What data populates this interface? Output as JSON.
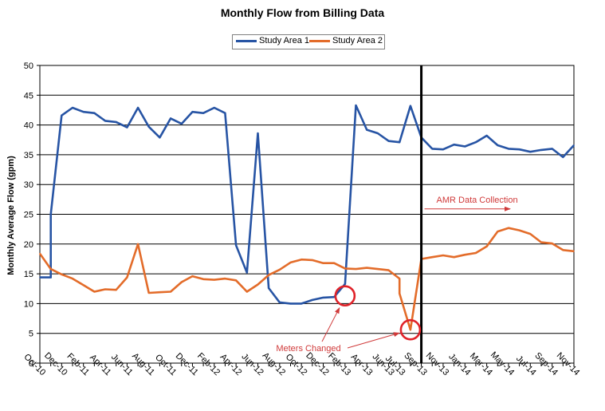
{
  "chart_data": {
    "type": "line",
    "title": "Monthly Flow from Billing Data",
    "xlabel": "",
    "ylabel": "Monthly Average Flow (gpm)",
    "ylim": [
      0,
      50
    ],
    "yticks": [
      0,
      5,
      10,
      15,
      20,
      25,
      30,
      35,
      40,
      45,
      50
    ],
    "grid": "horizontal",
    "legend_position": "top-center",
    "x_tick_labels": [
      "Oct-10",
      "Dec-10",
      "Feb-11",
      "Apr-11",
      "Jun-11",
      "Aug-11",
      "Oct-11",
      "Dec-11",
      "Feb-12",
      "Apr-12",
      "Jun-12",
      "Aug-12",
      "Oct-12",
      "Dec-12",
      "Feb-13",
      "Apr-13",
      "Jun-13",
      "Jul-13",
      "Sep-13",
      "Nov-13",
      "Jan-14",
      "Mar-14",
      "May-14",
      "Jul-14",
      "Sep-14",
      "Nov-14"
    ],
    "categories": [
      "Oct-10",
      "Nov-10",
      "Dec-10",
      "Jan-11",
      "Feb-11",
      "Mar-11",
      "Apr-11",
      "May-11",
      "Jun-11",
      "Jul-11",
      "Aug-11",
      "Sep-11",
      "Oct-11",
      "Nov-11",
      "Dec-11",
      "Jan-12",
      "Feb-12",
      "Mar-12",
      "Apr-12",
      "May-12",
      "Jun-12",
      "Jul-12",
      "Aug-12",
      "Sep-12",
      "Oct-12",
      "Nov-12",
      "Dec-12",
      "Jan-13",
      "Feb-13",
      "Mar-13",
      "Apr-13",
      "May-13",
      "Jun-13",
      "Jul-13",
      "Aug-13",
      "Sep-13",
      "Oct-13",
      "Nov-13",
      "Dec-13",
      "Jan-14",
      "Feb-14",
      "Mar-14",
      "Apr-14",
      "May-14",
      "Jun-14",
      "Jul-14",
      "Aug-14",
      "Sep-14",
      "Oct-14",
      "Nov-14"
    ],
    "series": [
      {
        "name": "Study Area 1",
        "color": "#2754a4",
        "points": [
          [
            "Oct-10",
            14.4
          ],
          [
            "Nov-10",
            14.4
          ],
          [
            "Nov-10",
            25.0
          ],
          [
            "Dec-10",
            41.6
          ],
          [
            "Jan-11",
            42.9
          ],
          [
            "Feb-11",
            42.2
          ],
          [
            "Mar-11",
            42.0
          ],
          [
            "Apr-11",
            40.7
          ],
          [
            "May-11",
            40.5
          ],
          [
            "Jun-11",
            39.6
          ],
          [
            "Jul-11",
            42.9
          ],
          [
            "Aug-11",
            39.7
          ],
          [
            "Sep-11",
            37.9
          ],
          [
            "Oct-11",
            41.1
          ],
          [
            "Nov-11",
            40.2
          ],
          [
            "Dec-11",
            42.2
          ],
          [
            "Jan-12",
            42.0
          ],
          [
            "Feb-12",
            42.9
          ],
          [
            "Mar-12",
            42.0
          ],
          [
            "Apr-12",
            19.8
          ],
          [
            "May-12",
            15.2
          ],
          [
            "Jun-12",
            38.6
          ],
          [
            "Jul-12",
            12.6
          ],
          [
            "Aug-12",
            10.2
          ],
          [
            "Sep-12",
            10.0
          ],
          [
            "Oct-12",
            10.0
          ],
          [
            "Nov-12",
            10.6
          ],
          [
            "Dec-12",
            11.0
          ],
          [
            "Jan-13",
            11.1
          ],
          [
            "Feb-13",
            13.3
          ],
          [
            "Mar-13",
            43.3
          ],
          [
            "Apr-13",
            39.2
          ],
          [
            "May-13",
            38.6
          ],
          [
            "Jun-13",
            37.3
          ],
          [
            "Jul-13",
            37.1
          ],
          [
            "Aug-13",
            43.2
          ],
          [
            "Sep-13",
            37.9
          ],
          [
            "Oct-13",
            36.0
          ],
          [
            "Nov-13",
            35.9
          ],
          [
            "Dec-13",
            36.7
          ],
          [
            "Jan-14",
            36.4
          ],
          [
            "Feb-14",
            37.1
          ],
          [
            "Mar-14",
            38.2
          ],
          [
            "Apr-14",
            36.6
          ],
          [
            "May-14",
            36.0
          ],
          [
            "Jun-14",
            35.9
          ],
          [
            "Jul-14",
            35.5
          ],
          [
            "Aug-14",
            35.8
          ],
          [
            "Sep-14",
            36.0
          ],
          [
            "Oct-14",
            34.6
          ],
          [
            "Nov-14",
            36.6
          ]
        ]
      },
      {
        "name": "Study Area 2",
        "color": "#e36c2a",
        "points": [
          [
            "Oct-10",
            18.4
          ],
          [
            "Nov-10",
            15.8
          ],
          [
            "Dec-10",
            14.9
          ],
          [
            "Jan-11",
            14.2
          ],
          [
            "Feb-11",
            13.1
          ],
          [
            "Mar-11",
            12.0
          ],
          [
            "Apr-11",
            12.4
          ],
          [
            "May-11",
            12.3
          ],
          [
            "Jun-11",
            14.4
          ],
          [
            "Jul-11",
            20.0
          ],
          [
            "Aug-11",
            11.8
          ],
          [
            "Sep-11",
            11.9
          ],
          [
            "Oct-11",
            12.0
          ],
          [
            "Nov-11",
            13.6
          ],
          [
            "Dec-11",
            14.6
          ],
          [
            "Jan-12",
            14.1
          ],
          [
            "Feb-12",
            14.0
          ],
          [
            "Mar-12",
            14.2
          ],
          [
            "Apr-12",
            13.9
          ],
          [
            "May-12",
            12.0
          ],
          [
            "Jun-12",
            13.2
          ],
          [
            "Jul-12",
            14.8
          ],
          [
            "Aug-12",
            15.7
          ],
          [
            "Sep-12",
            16.9
          ],
          [
            "Oct-12",
            17.4
          ],
          [
            "Nov-12",
            17.3
          ],
          [
            "Dec-12",
            16.8
          ],
          [
            "Jan-13",
            16.8
          ],
          [
            "Feb-13",
            15.9
          ],
          [
            "Mar-13",
            15.8
          ],
          [
            "Apr-13",
            16.0
          ],
          [
            "May-13",
            15.8
          ],
          [
            "Jun-13",
            15.6
          ],
          [
            "Jul-13",
            14.2
          ],
          [
            "Jul-13",
            11.7
          ],
          [
            "Aug-13",
            5.6
          ],
          [
            "Sep-13",
            17.5
          ],
          [
            "Oct-13",
            17.8
          ],
          [
            "Nov-13",
            18.1
          ],
          [
            "Dec-13",
            17.8
          ],
          [
            "Jan-14",
            18.2
          ],
          [
            "Feb-14",
            18.5
          ],
          [
            "Mar-14",
            19.6
          ],
          [
            "Apr-14",
            22.1
          ],
          [
            "May-14",
            22.7
          ],
          [
            "Jun-14",
            22.3
          ],
          [
            "Jul-14",
            21.7
          ],
          [
            "Aug-14",
            20.3
          ],
          [
            "Sep-14",
            20.1
          ],
          [
            "Oct-14",
            19.0
          ],
          [
            "Nov-14",
            18.8
          ]
        ]
      }
    ],
    "vertical_marker": {
      "x": "Sep-13",
      "color": "#000000"
    },
    "annotations": {
      "amr_label": "AMR Data Collection",
      "meters_label": "Meters Changed",
      "annotation_color": "#d03a3a",
      "amr_arrow": {
        "from": "Sep-13",
        "to": "May-14",
        "y": 25.9
      },
      "circles": [
        {
          "x": "Feb-13",
          "y": 11.3
        },
        {
          "x": "Aug-13",
          "y": 5.6
        }
      ]
    }
  }
}
